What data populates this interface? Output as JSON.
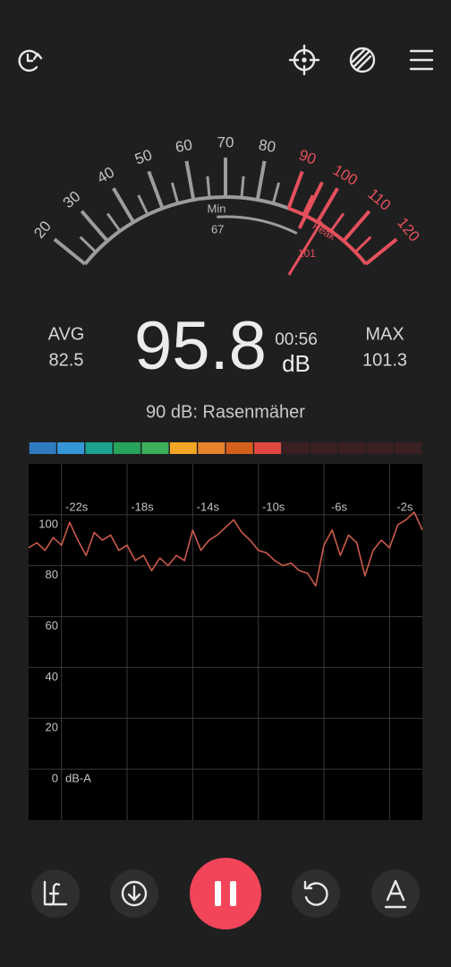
{
  "gauge": {
    "ticks": [
      20,
      30,
      40,
      50,
      60,
      70,
      80,
      90,
      100,
      110,
      120
    ],
    "danger_from": 90,
    "min_label": "Min",
    "min": 67,
    "peak_label": "Peak",
    "peak": 101
  },
  "readout": {
    "avg_label": "AVG",
    "avg": 82.5,
    "value": 95.8,
    "time": "00:56",
    "unit": "dB",
    "max_label": "MAX",
    "max": 101.3,
    "reference": "90 dB: Rasenmäher"
  },
  "level_bar": {
    "colors": [
      "#2f7bbf",
      "#3597d8",
      "#1ba38f",
      "#27a35b",
      "#3cb05a",
      "#f3a524",
      "#e6832b",
      "#d45f1c",
      "#df4840",
      "#3a2020",
      "#3a2020",
      "#3a2020",
      "#3a2020",
      "#3a2020"
    ]
  },
  "chart_data": {
    "type": "line",
    "y_label": "dB-A",
    "x": [
      -24,
      -23.5,
      -23,
      -22.5,
      -22,
      -21.5,
      -21,
      -20.5,
      -20,
      -19.5,
      -19,
      -18.5,
      -18,
      -17.5,
      -17,
      -16.5,
      -16,
      -15.5,
      -15,
      -14.5,
      -14,
      -13.5,
      -13,
      -12.5,
      -12,
      -11.5,
      -11,
      -10.5,
      -10,
      -9.5,
      -9,
      -8.5,
      -8,
      -7.5,
      -7,
      -6.5,
      -6,
      -5.5,
      -5,
      -4.5,
      -4,
      -3.5,
      -3,
      -2.5,
      -2,
      -1.5,
      -1,
      -0.5,
      0
    ],
    "series": [
      {
        "color": "#cc5a4b",
        "values": [
          87,
          89,
          86,
          91,
          88,
          97,
          90,
          84,
          93,
          90,
          92,
          86,
          88,
          82,
          84,
          78,
          83,
          80,
          84,
          82,
          94,
          86,
          90,
          92,
          95,
          98,
          93,
          90,
          86,
          85,
          82,
          80,
          81,
          78,
          77,
          72,
          88,
          94,
          84,
          92,
          89,
          76,
          86,
          90,
          87,
          96,
          98,
          101,
          94
        ]
      }
    ],
    "xlim": [
      -24,
      0
    ],
    "ylim": [
      -20,
      120
    ],
    "xticks": [
      {
        "value": -22,
        "label": "-22s"
      },
      {
        "value": -18,
        "label": "-18s"
      },
      {
        "value": -14,
        "label": "-14s"
      },
      {
        "value": -10,
        "label": "-10s"
      },
      {
        "value": -6,
        "label": "-6s"
      },
      {
        "value": -2,
        "label": "-2s"
      }
    ],
    "yticks": [
      0,
      20,
      40,
      60,
      80,
      100
    ],
    "grid": true
  }
}
